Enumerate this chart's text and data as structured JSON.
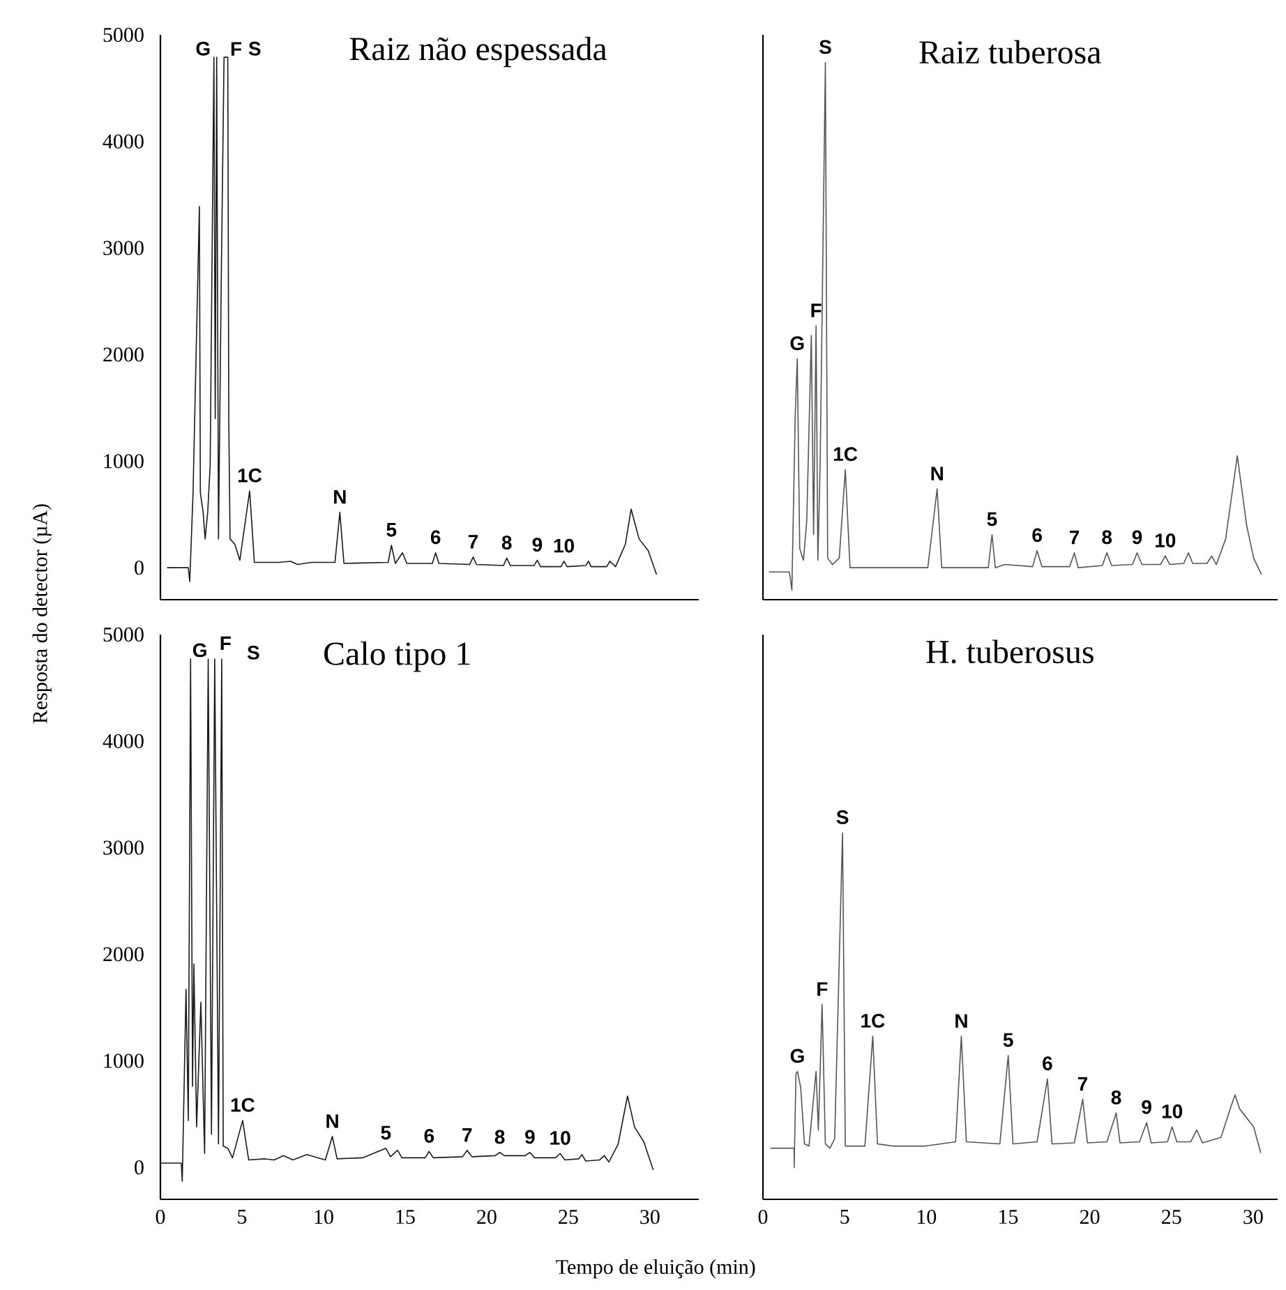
{
  "chart_data": [
    {
      "type": "line",
      "title": "Raiz não espessada",
      "xlim": [
        0,
        33
      ],
      "ylim": [
        -300,
        5000
      ],
      "xticks": [
        0,
        5,
        10,
        15,
        20,
        25,
        30
      ],
      "yticks": [
        0,
        1000,
        2000,
        3000,
        4000,
        5000
      ],
      "tick_labels": "y",
      "series": [
        {
          "color": "#1a1a1a",
          "x": [
            0.43,
            1.71,
            1.8,
            2.0,
            2.39,
            2.45,
            2.62,
            2.74,
            2.9,
            3.05,
            3.28,
            3.36,
            3.45,
            3.56,
            3.73,
            3.9,
            4.13,
            4.19,
            4.27,
            4.56,
            4.87,
            5.21,
            5.47,
            5.76,
            7.26,
            7.98,
            8.4,
            9.26,
            10.7,
            11.0,
            11.25,
            13.96,
            14.16,
            14.4,
            14.84,
            15.1,
            16.67,
            16.87,
            17.07,
            18.95,
            19.17,
            19.37,
            21.03,
            21.23,
            21.45,
            22.9,
            23.1,
            23.3,
            24.56,
            24.73,
            24.93,
            26.07,
            26.24,
            26.4,
            27.35,
            27.55,
            27.9,
            28.5,
            28.85,
            29.34,
            29.9,
            30.4
          ],
          "values": [
            0,
            0,
            -130,
            700,
            3390,
            700,
            520,
            270,
            520,
            960,
            4790,
            1400,
            4790,
            270,
            2700,
            4790,
            4790,
            1400,
            270,
            220,
            70,
            440,
            720,
            50,
            50,
            60,
            30,
            50,
            50,
            520,
            40,
            50,
            210,
            40,
            140,
            40,
            40,
            140,
            40,
            30,
            100,
            30,
            20,
            90,
            20,
            20,
            70,
            10,
            10,
            60,
            10,
            20,
            60,
            10,
            10,
            60,
            10,
            220,
            550,
            270,
            160,
            -60
          ]
        }
      ],
      "annotations": [
        "G",
        "F",
        "S",
        {
          "text": "1C",
          "x": 5.47,
          "y": 720
        },
        {
          "text": "N",
          "x": 11.0,
          "y": 520
        },
        {
          "text": "5",
          "x": 14.16,
          "y": 210
        },
        {
          "text": "6",
          "x": 16.87,
          "y": 140
        },
        {
          "text": "7",
          "x": 19.17,
          "y": 100
        },
        {
          "text": "8",
          "x": 21.23,
          "y": 90
        },
        {
          "text": "9",
          "x": 23.1,
          "y": 70
        },
        {
          "text": "10",
          "x": 24.73,
          "y": 60
        }
      ]
    },
    {
      "type": "line",
      "title": "Raiz tuberosa",
      "xlim": [
        0,
        31.5
      ],
      "ylim": [
        -300,
        5000
      ],
      "xticks": [
        0,
        5,
        10,
        15,
        20,
        25,
        30
      ],
      "yticks": [
        0,
        1000,
        2000,
        3000,
        4000,
        5000
      ],
      "tick_labels": false,
      "series": [
        {
          "color": "#555555",
          "x": [
            0.4,
            1.62,
            1.77,
            1.97,
            2.1,
            2.25,
            2.48,
            2.68,
            2.96,
            3.1,
            3.25,
            3.36,
            3.5,
            3.82,
            3.96,
            4.25,
            4.67,
            5.04,
            5.33,
            10.09,
            10.66,
            10.94,
            13.79,
            14.02,
            14.22,
            14.79,
            16.5,
            16.78,
            17.07,
            18.77,
            19.06,
            19.29,
            20.77,
            21.05,
            21.34,
            22.62,
            22.9,
            23.19,
            24.33,
            24.62,
            24.9,
            25.75,
            26.04,
            26.3,
            27.18,
            27.46,
            27.75,
            28.32,
            29.03,
            29.6,
            30.03,
            30.5
          ],
          "values": [
            -40,
            -40,
            -210,
            1400,
            1960,
            180,
            70,
            440,
            2180,
            310,
            2270,
            70,
            960,
            4740,
            90,
            30,
            90,
            920,
            0,
            0,
            740,
            0,
            0,
            310,
            0,
            30,
            10,
            160,
            10,
            10,
            140,
            0,
            20,
            140,
            20,
            30,
            140,
            30,
            30,
            110,
            30,
            40,
            140,
            40,
            40,
            110,
            30,
            270,
            1050,
            400,
            90,
            -60
          ]
        }
      ],
      "annotations": [
        {
          "text": "G",
          "x": 2.1,
          "y": 1960
        },
        {
          "text": "F",
          "x": 3.25,
          "y": 2270
        },
        {
          "text": "S",
          "x": 3.82,
          "y": 4740
        },
        {
          "text": "1C",
          "x": 5.04,
          "y": 920
        },
        {
          "text": "N",
          "x": 10.66,
          "y": 740
        },
        {
          "text": "5",
          "x": 14.02,
          "y": 310
        },
        {
          "text": "6",
          "x": 16.78,
          "y": 160
        },
        {
          "text": "7",
          "x": 19.06,
          "y": 140
        },
        {
          "text": "8",
          "x": 21.05,
          "y": 140
        },
        {
          "text": "9",
          "x": 22.9,
          "y": 140
        },
        {
          "text": "10",
          "x": 24.62,
          "y": 110
        }
      ]
    },
    {
      "type": "line",
      "title": "Calo tipo 1",
      "xlabel": "Tempo de eluição (min)",
      "ylabel": "Resposta do detector (µA)",
      "xlim": [
        0,
        33
      ],
      "ylim": [
        -300,
        5000
      ],
      "xticks": [
        0,
        5,
        10,
        15,
        20,
        25,
        30
      ],
      "yticks": [
        0,
        1000,
        2000,
        3000,
        4000,
        5000
      ],
      "series": [
        {
          "color": "#1a1a1a",
          "x": [
            0,
            1.28,
            1.34,
            1.57,
            1.71,
            1.85,
            1.97,
            2.05,
            2.22,
            2.48,
            2.71,
            2.93,
            3.13,
            3.33,
            3.56,
            3.76,
            3.85,
            4.13,
            4.42,
            5.04,
            5.41,
            6.41,
            6.98,
            7.55,
            8.12,
            8.97,
            10.11,
            10.54,
            10.83,
            12.39,
            13.82,
            14.1,
            14.53,
            14.81,
            16.24,
            16.47,
            16.72,
            18.52,
            18.8,
            19.09,
            20.51,
            20.8,
            21.08,
            22.36,
            22.65,
            22.93,
            24.22,
            24.5,
            24.79,
            25.64,
            25.84,
            26.07,
            26.92,
            27.21,
            27.49,
            28.06,
            28.63,
            29.06,
            29.63,
            30.2
          ],
          "values": [
            40,
            40,
            -130,
            1670,
            440,
            4770,
            760,
            1910,
            380,
            1550,
            130,
            4770,
            310,
            4770,
            220,
            4770,
            200,
            180,
            90,
            440,
            70,
            80,
            70,
            110,
            70,
            120,
            70,
            290,
            80,
            90,
            180,
            100,
            160,
            90,
            90,
            150,
            90,
            100,
            160,
            100,
            110,
            140,
            110,
            110,
            140,
            90,
            90,
            130,
            70,
            80,
            120,
            60,
            70,
            110,
            50,
            220,
            670,
            380,
            240,
            -20
          ]
        }
      ],
      "annotations": [
        "G",
        "F",
        "S",
        {
          "text": "1C",
          "x": 5.04,
          "y": 440
        },
        {
          "text": "N",
          "x": 10.54,
          "y": 290
        },
        {
          "text": "5",
          "x": 13.82,
          "y": 180
        },
        {
          "text": "6",
          "x": 16.47,
          "y": 150
        },
        {
          "text": "7",
          "x": 18.8,
          "y": 160
        },
        {
          "text": "8",
          "x": 20.8,
          "y": 140
        },
        {
          "text": "9",
          "x": 22.65,
          "y": 140
        },
        {
          "text": "10",
          "x": 24.5,
          "y": 130
        }
      ]
    },
    {
      "type": "line",
      "title": "H. tuberosus",
      "xlim": [
        0,
        31.5
      ],
      "ylim": [
        -300,
        5000
      ],
      "xticks": [
        0,
        5,
        10,
        15,
        20,
        25,
        30
      ],
      "yticks": [
        0,
        1000,
        2000,
        3000,
        4000,
        5000
      ],
      "tick_labels": "x",
      "series": [
        {
          "color": "#555555",
          "x": [
            0.48,
            1.91,
            1.91,
            2.02,
            2.11,
            2.31,
            2.54,
            2.82,
            3.25,
            3.39,
            3.62,
            3.82,
            4.1,
            4.39,
            4.87,
            5.04,
            6.24,
            6.72,
            7.01,
            7.95,
            9.94,
            11.79,
            12.14,
            12.45,
            14.5,
            15.01,
            15.3,
            16.78,
            17.41,
            17.69,
            19.06,
            19.57,
            19.86,
            21.05,
            21.62,
            21.85,
            23.05,
            23.48,
            23.76,
            24.76,
            25.04,
            25.33,
            26.18,
            26.55,
            26.9,
            28.03,
            28.6,
            28.89,
            29.17,
            30.03,
            30.46
          ],
          "values": [
            180,
            180,
            0,
            880,
            900,
            750,
            220,
            200,
            900,
            350,
            1530,
            220,
            180,
            270,
            3140,
            200,
            200,
            1230,
            220,
            200,
            200,
            240,
            1230,
            240,
            220,
            1050,
            220,
            240,
            830,
            220,
            230,
            640,
            230,
            240,
            510,
            230,
            240,
            420,
            230,
            240,
            380,
            240,
            240,
            350,
            230,
            280,
            550,
            680,
            550,
            380,
            140
          ]
        }
      ],
      "annotations": [
        {
          "text": "G",
          "x": 2.11,
          "y": 900
        },
        {
          "text": "F",
          "x": 3.62,
          "y": 1530
        },
        {
          "text": "S",
          "x": 4.87,
          "y": 3140
        },
        {
          "text": "1C",
          "x": 6.72,
          "y": 1230
        },
        {
          "text": "N",
          "x": 12.14,
          "y": 1230
        },
        {
          "text": "5",
          "x": 15.01,
          "y": 1050
        },
        {
          "text": "6",
          "x": 17.41,
          "y": 830
        },
        {
          "text": "7",
          "x": 19.57,
          "y": 640
        },
        {
          "text": "8",
          "x": 21.62,
          "y": 510
        },
        {
          "text": "9",
          "x": 23.48,
          "y": 420
        },
        {
          "text": "10",
          "x": 25.04,
          "y": 380
        }
      ]
    }
  ]
}
